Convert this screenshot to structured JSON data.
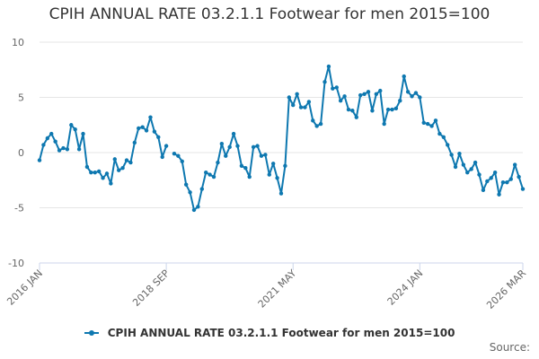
{
  "title": "CPIH ANNUAL RATE 03.2.1.1 Footwear for men 2015=100",
  "credits": "Source:",
  "colors": {
    "series": "#0e78b0",
    "grid": "#e6e6e6",
    "axis": "#ccd6eb",
    "text": "#666666"
  },
  "chart_data": {
    "type": "line",
    "title": "CPIH ANNUAL RATE 03.2.1.1 Footwear for men 2015=100",
    "xlabel": "",
    "ylabel": "",
    "ylim": [
      -10,
      10
    ],
    "yticks": [
      10,
      5,
      0,
      -5,
      -10
    ],
    "xrange": [
      "2016 JAN",
      "2026 MAR"
    ],
    "xticks": [
      "2016 JAN",
      "2018 SEP",
      "2021 MAY",
      "2024 JAN",
      "2026 MAR"
    ],
    "grid": true,
    "legend": "bottom-center",
    "gaps_after": [
      "2018 SEP"
    ],
    "series": [
      {
        "name": "CPIH ANNUAL RATE 03.2.1.1 Footwear for men 2015=100",
        "start": "2016 JAN",
        "frequency": "monthly",
        "values": [
          -0.7,
          0.7,
          1.3,
          1.7,
          1.0,
          0.2,
          0.4,
          0.3,
          2.5,
          2.1,
          0.3,
          1.7,
          -1.3,
          -1.8,
          -1.8,
          -1.7,
          -2.3,
          -1.9,
          -2.8,
          -0.6,
          -1.6,
          -1.4,
          -0.7,
          -0.9,
          0.9,
          2.2,
          2.3,
          2.0,
          3.2,
          1.9,
          1.4,
          -0.4,
          0.6,
          null,
          -0.1,
          -0.3,
          -0.8,
          -2.9,
          -3.6,
          -5.2,
          -4.9,
          -3.3,
          -1.8,
          -2.0,
          -2.2,
          -0.9,
          0.8,
          -0.3,
          0.5,
          1.7,
          0.6,
          -1.2,
          -1.4,
          -2.2,
          0.5,
          0.6,
          -0.3,
          -0.2,
          -2.0,
          -1.0,
          -2.3,
          -3.7,
          -1.2,
          5.0,
          4.3,
          5.3,
          4.1,
          4.1,
          4.6,
          2.9,
          2.4,
          2.6,
          6.4,
          7.8,
          5.8,
          5.9,
          4.7,
          5.1,
          3.9,
          3.8,
          3.2,
          5.2,
          5.3,
          5.5,
          3.8,
          5.3,
          5.6,
          2.6,
          3.9,
          3.9,
          4.0,
          4.7,
          6.9,
          5.5,
          5.1,
          5.4,
          5.0,
          2.7,
          2.6,
          2.4,
          2.9,
          1.7,
          1.4,
          0.7,
          -0.2,
          -1.3,
          -0.1,
          -1.1,
          -1.8,
          -1.5,
          -0.9,
          -2.0,
          -3.4,
          -2.6,
          -2.3,
          -1.8,
          -3.8,
          -2.7,
          -2.7,
          -2.4,
          -1.1,
          -2.2,
          -3.3
        ]
      }
    ]
  }
}
